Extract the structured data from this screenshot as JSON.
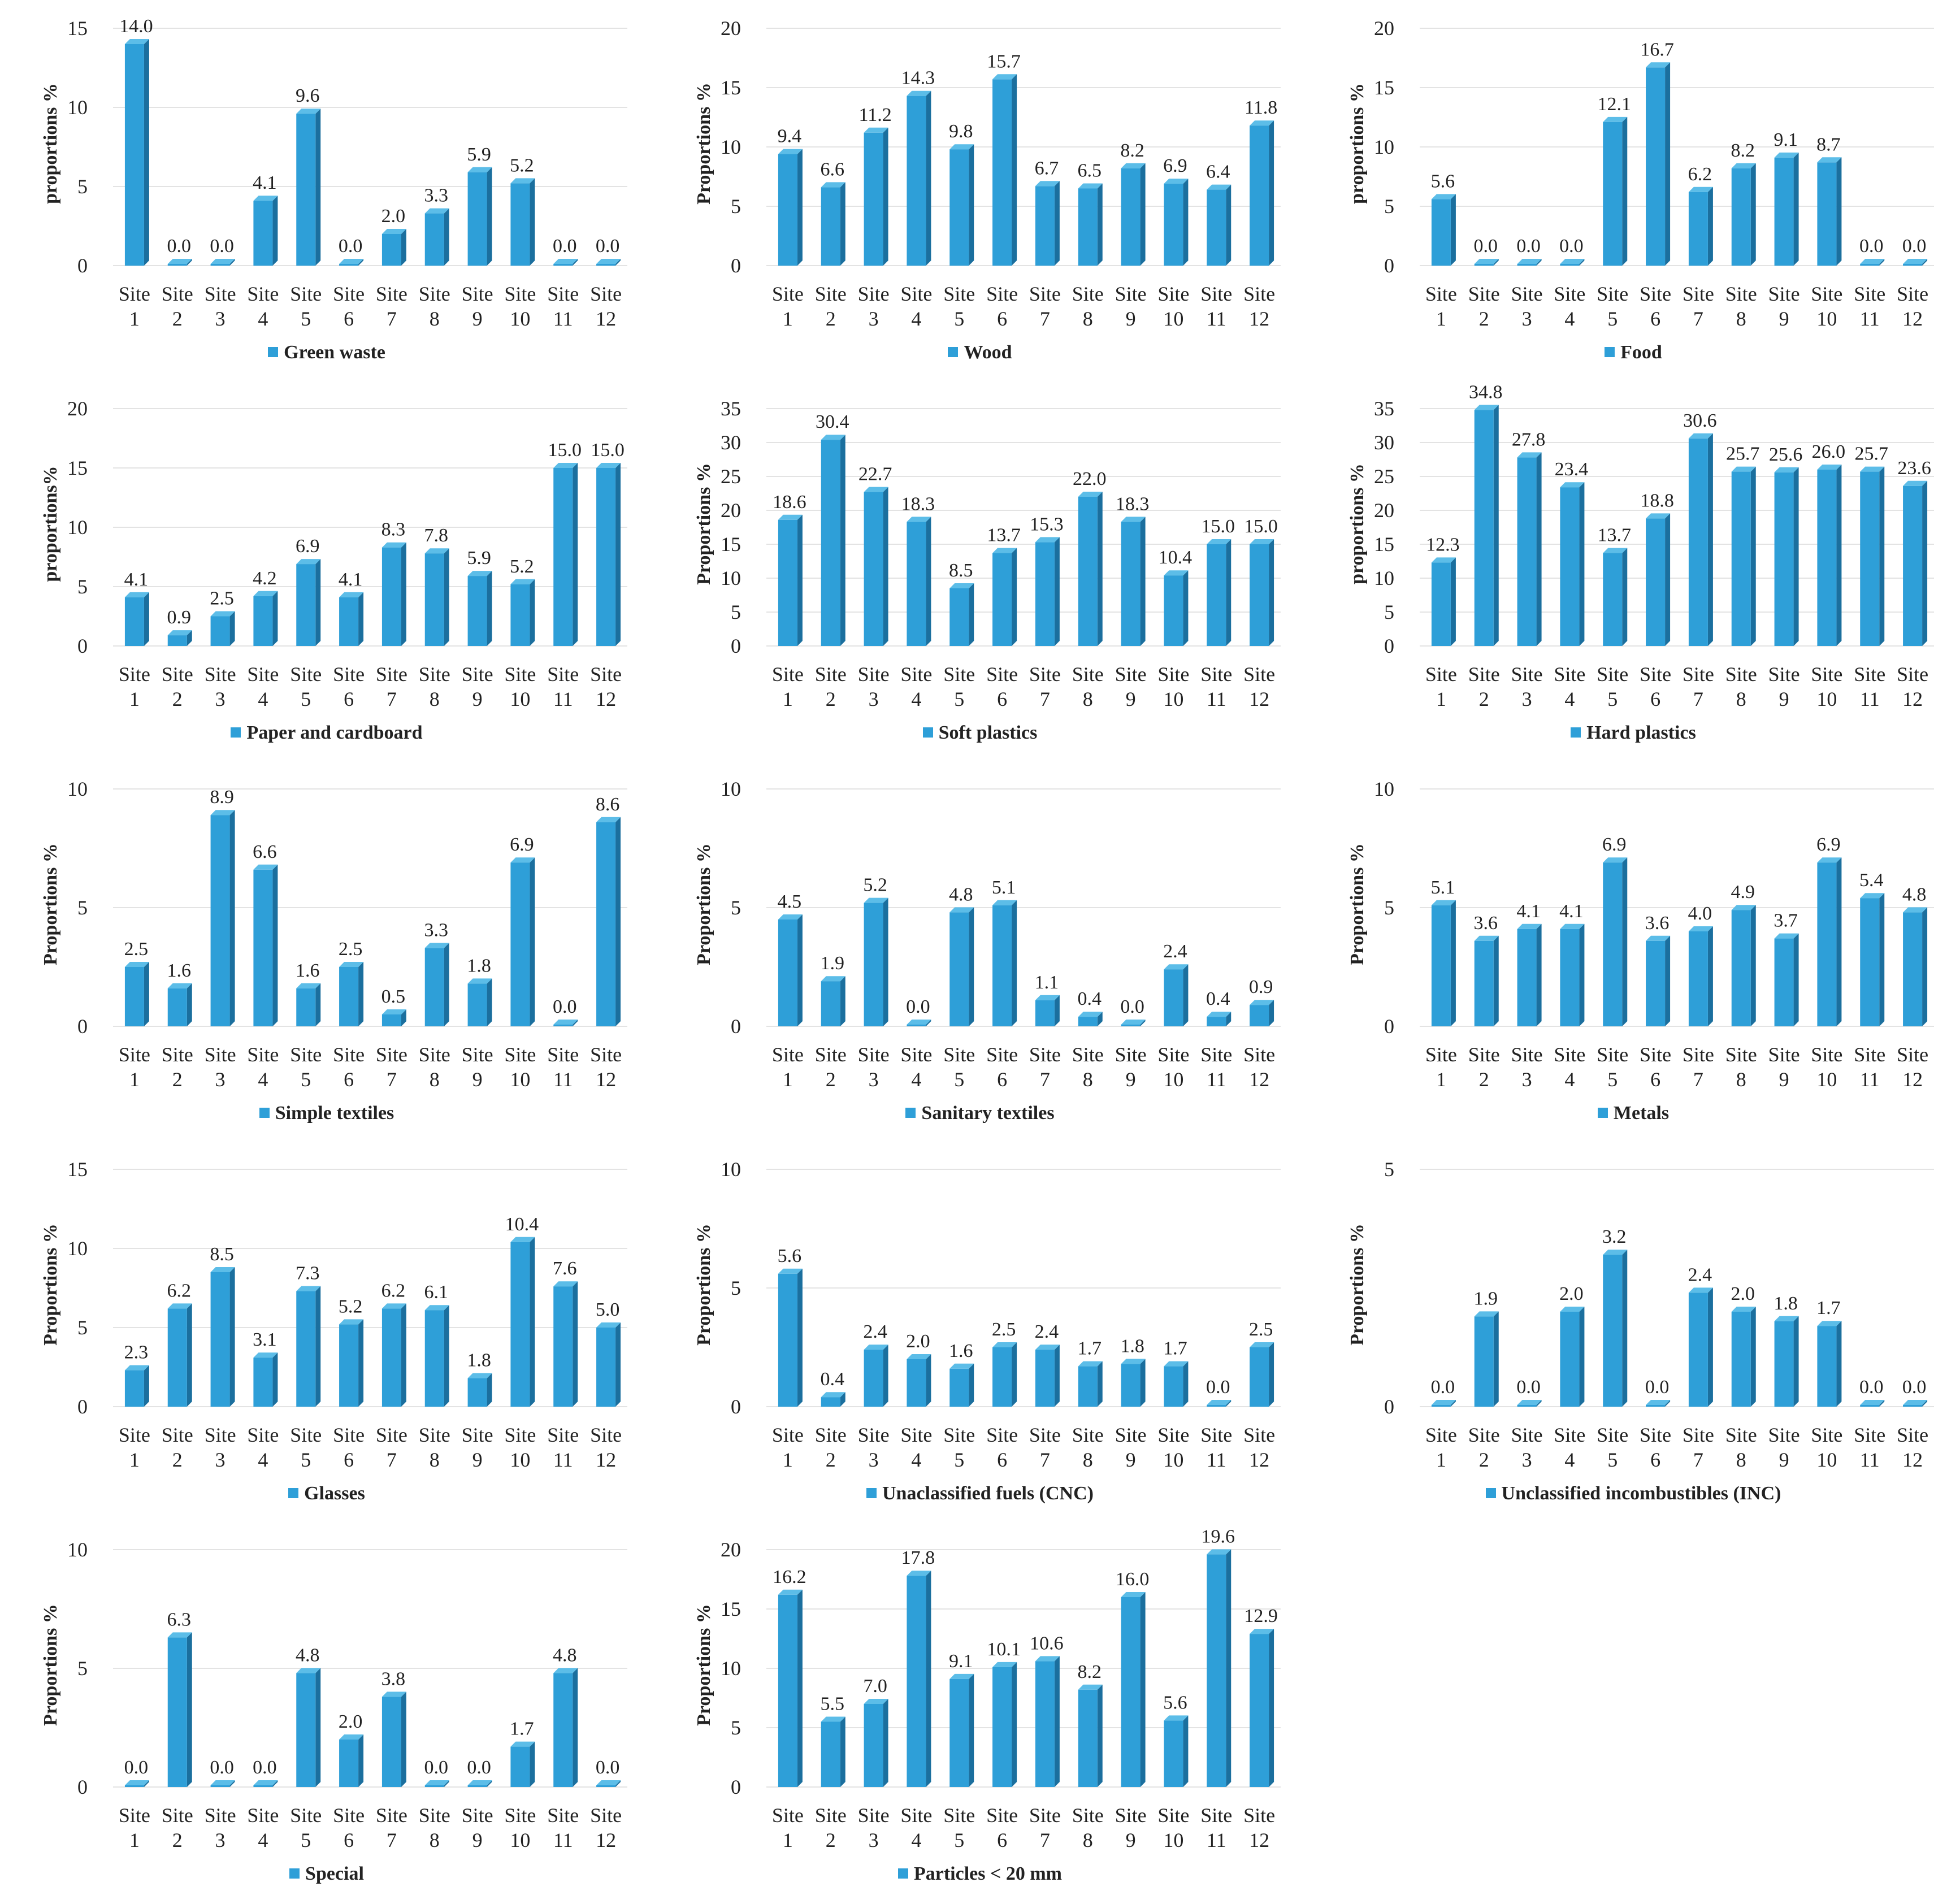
{
  "chart_data": [
    {
      "type": "bar",
      "title": "Green waste",
      "ylabel": "proportions %",
      "ylim": [
        0,
        15
      ],
      "yticks": [
        0,
        5,
        10,
        15
      ],
      "categories": [
        "Site 1",
        "Site 2",
        "Site 3",
        "Site 4",
        "Site 5",
        "Site 6",
        "Site 7",
        "Site 8",
        "Site 9",
        "Site 10",
        "Site 11",
        "Site 12"
      ],
      "values": [
        14.0,
        0.0,
        0.0,
        4.1,
        9.6,
        0.0,
        2.0,
        3.3,
        5.9,
        5.2,
        0.0,
        0.0
      ]
    },
    {
      "type": "bar",
      "title": "Wood",
      "ylabel": "Proportions %",
      "ylim": [
        0,
        20
      ],
      "yticks": [
        0,
        5,
        10,
        15,
        20
      ],
      "categories": [
        "Site 1",
        "Site 2",
        "Site 3",
        "Site 4",
        "Site 5",
        "Site 6",
        "Site 7",
        "Site 8",
        "Site 9",
        "Site 10",
        "Site 11",
        "Site 12"
      ],
      "values": [
        9.4,
        6.6,
        11.2,
        14.3,
        9.8,
        15.7,
        6.7,
        6.5,
        8.2,
        6.9,
        6.4,
        11.8
      ]
    },
    {
      "type": "bar",
      "title": "Food",
      "ylabel": "proportions %",
      "ylim": [
        0,
        20
      ],
      "yticks": [
        0,
        5,
        10,
        15,
        20
      ],
      "categories": [
        "Site 1",
        "Site 2",
        "Site 3",
        "Site 4",
        "Site 5",
        "Site 6",
        "Site 7",
        "Site 8",
        "Site 9",
        "Site 10",
        "Site 11",
        "Site 12"
      ],
      "values": [
        5.6,
        0.0,
        0.0,
        0.0,
        12.1,
        16.7,
        6.2,
        8.2,
        9.1,
        8.7,
        0.0,
        0.0
      ]
    },
    {
      "type": "bar",
      "title": "Paper and cardboard",
      "ylabel": "proportions%",
      "ylim": [
        0,
        20
      ],
      "yticks": [
        0,
        5,
        10,
        15,
        20
      ],
      "categories": [
        "Site 1",
        "Site 2",
        "Site 3",
        "Site 4",
        "Site 5",
        "Site 6",
        "Site 7",
        "Site 8",
        "Site 9",
        "Site 10",
        "Site 11",
        "Site 12"
      ],
      "values": [
        4.1,
        0.9,
        2.5,
        4.2,
        6.9,
        4.1,
        8.3,
        7.8,
        5.9,
        5.2,
        15.0,
        15.0
      ]
    },
    {
      "type": "bar",
      "title": "Soft plastics",
      "ylabel": "Proportions %",
      "ylim": [
        0,
        35
      ],
      "yticks": [
        0,
        5,
        10,
        15,
        20,
        25,
        30,
        35
      ],
      "categories": [
        "Site 1",
        "Site 2",
        "Site 3",
        "Site 4",
        "Site 5",
        "Site 6",
        "Site 7",
        "Site 8",
        "Site 9",
        "Site 10",
        "Site 11",
        "Site 12"
      ],
      "values": [
        18.6,
        30.4,
        22.7,
        18.3,
        8.5,
        13.7,
        15.3,
        22.0,
        18.3,
        10.4,
        15.0,
        15.0
      ]
    },
    {
      "type": "bar",
      "title": "Hard plastics",
      "ylabel": "proportions %",
      "ylim": [
        0,
        35
      ],
      "yticks": [
        0,
        5,
        10,
        15,
        20,
        25,
        30,
        35
      ],
      "categories": [
        "Site 1",
        "Site 2",
        "Site 3",
        "Site 4",
        "Site 5",
        "Site 6",
        "Site 7",
        "Site 8",
        "Site 9",
        "Site 10",
        "Site 11",
        "Site 12"
      ],
      "values": [
        12.3,
        34.8,
        27.8,
        23.4,
        13.7,
        18.8,
        30.6,
        25.7,
        25.6,
        26.0,
        25.7,
        23.6
      ]
    },
    {
      "type": "bar",
      "title": "Simple textiles",
      "ylabel": "Proportions %",
      "ylim": [
        0,
        10
      ],
      "yticks": [
        0,
        5,
        10
      ],
      "categories": [
        "Site 1",
        "Site 2",
        "Site 3",
        "Site 4",
        "Site 5",
        "Site 6",
        "Site 7",
        "Site 8",
        "Site 9",
        "Site 10",
        "Site 11",
        "Site 12"
      ],
      "values": [
        2.5,
        1.6,
        8.9,
        6.6,
        1.6,
        2.5,
        0.5,
        3.3,
        1.8,
        6.9,
        0.0,
        8.6
      ]
    },
    {
      "type": "bar",
      "title": "Sanitary textiles",
      "ylabel": "Proportions %",
      "ylim": [
        0,
        10
      ],
      "yticks": [
        0,
        5,
        10
      ],
      "categories": [
        "Site 1",
        "Site 2",
        "Site 3",
        "Site 4",
        "Site 5",
        "Site 6",
        "Site 7",
        "Site 8",
        "Site 9",
        "Site 10",
        "Site 11",
        "Site 12"
      ],
      "values": [
        4.5,
        1.9,
        5.2,
        0.0,
        4.8,
        5.1,
        1.1,
        0.4,
        0.0,
        2.4,
        0.4,
        0.9
      ]
    },
    {
      "type": "bar",
      "title": "Metals",
      "ylabel": "Proportions %",
      "ylim": [
        0,
        10
      ],
      "yticks": [
        0,
        5,
        10
      ],
      "categories": [
        "Site 1",
        "Site 2",
        "Site 3",
        "Site 4",
        "Site 5",
        "Site 6",
        "Site 7",
        "Site 8",
        "Site 9",
        "Site 10",
        "Site 11",
        "Site 12"
      ],
      "values": [
        5.1,
        3.6,
        4.1,
        4.1,
        6.9,
        3.6,
        4.0,
        4.9,
        3.7,
        6.9,
        5.4,
        4.8
      ]
    },
    {
      "type": "bar",
      "title": "Glasses",
      "ylabel": "Proportions %",
      "ylim": [
        0,
        15
      ],
      "yticks": [
        0,
        5,
        10,
        15
      ],
      "categories": [
        "Site 1",
        "Site 2",
        "Site 3",
        "Site 4",
        "Site 5",
        "Site 6",
        "Site 7",
        "Site 8",
        "Site 9",
        "Site 10",
        "Site 11",
        "Site 12"
      ],
      "values": [
        2.3,
        6.2,
        8.5,
        3.1,
        7.3,
        5.2,
        6.2,
        6.1,
        1.8,
        10.4,
        7.6,
        5.0
      ]
    },
    {
      "type": "bar",
      "title": "Unaclassified fuels (CNC)",
      "ylabel": "Proportions %",
      "ylim": [
        0,
        10
      ],
      "yticks": [
        0,
        5,
        10
      ],
      "categories": [
        "Site 1",
        "Site 2",
        "Site 3",
        "Site 4",
        "Site 5",
        "Site 6",
        "Site 7",
        "Site 8",
        "Site 9",
        "Site 10",
        "Site 11",
        "Site 12"
      ],
      "values": [
        5.6,
        0.4,
        2.4,
        2.0,
        1.6,
        2.5,
        2.4,
        1.7,
        1.8,
        1.7,
        0.0,
        2.5
      ]
    },
    {
      "type": "bar",
      "title": "Unclassified incombustibles (INC)",
      "ylabel": "Proportions %",
      "ylim": [
        0,
        5
      ],
      "yticks": [
        0,
        5
      ],
      "categories": [
        "Site 1",
        "Site 2",
        "Site 3",
        "Site 4",
        "Site 5",
        "Site 6",
        "Site 7",
        "Site 8",
        "Site 9",
        "Site 10",
        "Site 11",
        "Site 12"
      ],
      "values": [
        0.0,
        1.9,
        0.0,
        2.0,
        3.2,
        0.0,
        2.4,
        2.0,
        1.8,
        1.7,
        0.0,
        0.0
      ]
    },
    {
      "type": "bar",
      "title": "Special",
      "ylabel": "Proportions %",
      "ylim": [
        0,
        10
      ],
      "yticks": [
        0,
        5,
        10
      ],
      "categories": [
        "Site 1",
        "Site 2",
        "Site 3",
        "Site 4",
        "Site 5",
        "Site 6",
        "Site 7",
        "Site 8",
        "Site 9",
        "Site 10",
        "Site 11",
        "Site 12"
      ],
      "values": [
        0.0,
        6.3,
        0.0,
        0.0,
        4.8,
        2.0,
        3.8,
        0.0,
        0.0,
        1.7,
        4.8,
        0.0
      ]
    },
    {
      "type": "bar",
      "title": "Particles < 20 mm",
      "ylabel": "Proportions %",
      "ylim": [
        0,
        20
      ],
      "yticks": [
        0,
        5,
        10,
        15,
        20
      ],
      "categories": [
        "Site 1",
        "Site 2",
        "Site 3",
        "Site 4",
        "Site 5",
        "Site 6",
        "Site 7",
        "Site 8",
        "Site 9",
        "Site 10",
        "Site 11",
        "Site 12"
      ],
      "values": [
        16.2,
        5.5,
        7.0,
        17.8,
        9.1,
        10.1,
        10.6,
        8.2,
        16.0,
        5.6,
        19.6,
        12.9
      ]
    }
  ]
}
